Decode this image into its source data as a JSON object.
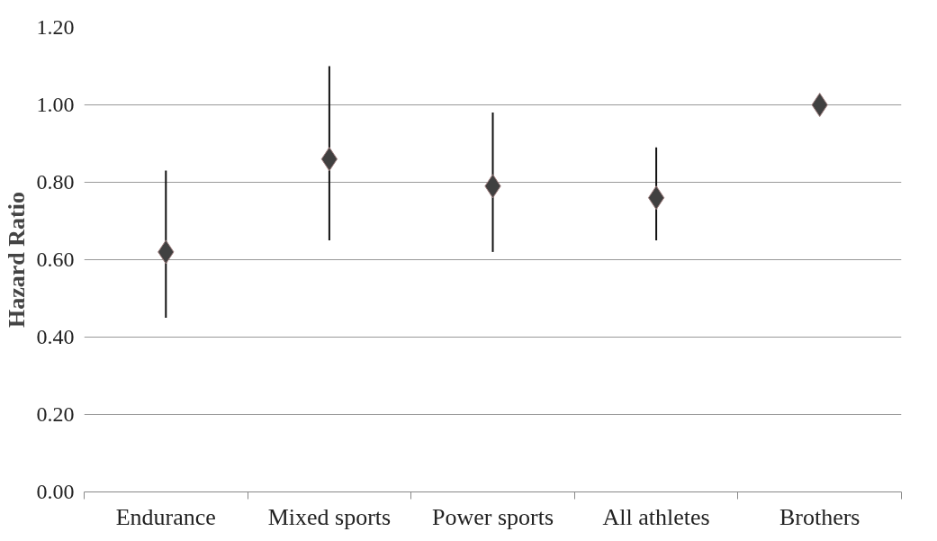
{
  "chart_data": {
    "type": "scatter",
    "ylabel": "Hazard Ratio",
    "categories": [
      "Endurance",
      "Mixed sports",
      "Power sports",
      "All athletes",
      "Brothers"
    ],
    "values": [
      0.62,
      0.86,
      0.79,
      0.76,
      1.0
    ],
    "errors": [
      [
        0.45,
        0.83
      ],
      [
        0.65,
        1.1
      ],
      [
        0.62,
        0.98
      ],
      [
        0.65,
        0.89
      ],
      null
    ],
    "color": "#404040",
    "ylim": [
      0,
      1.2
    ],
    "yticks": [
      {
        "value": 0,
        "label": "0.00"
      },
      {
        "value": 0.2,
        "label": "0.20"
      },
      {
        "value": 0.4,
        "label": "0.40"
      },
      {
        "value": 0.6,
        "label": "0.60"
      },
      {
        "value": 0.8,
        "label": "0.80"
      },
      {
        "value": 1.0,
        "label": "1.00"
      },
      {
        "value": 1.2,
        "label": "1.20"
      }
    ],
    "grid": "y",
    "marker": "diamond"
  }
}
